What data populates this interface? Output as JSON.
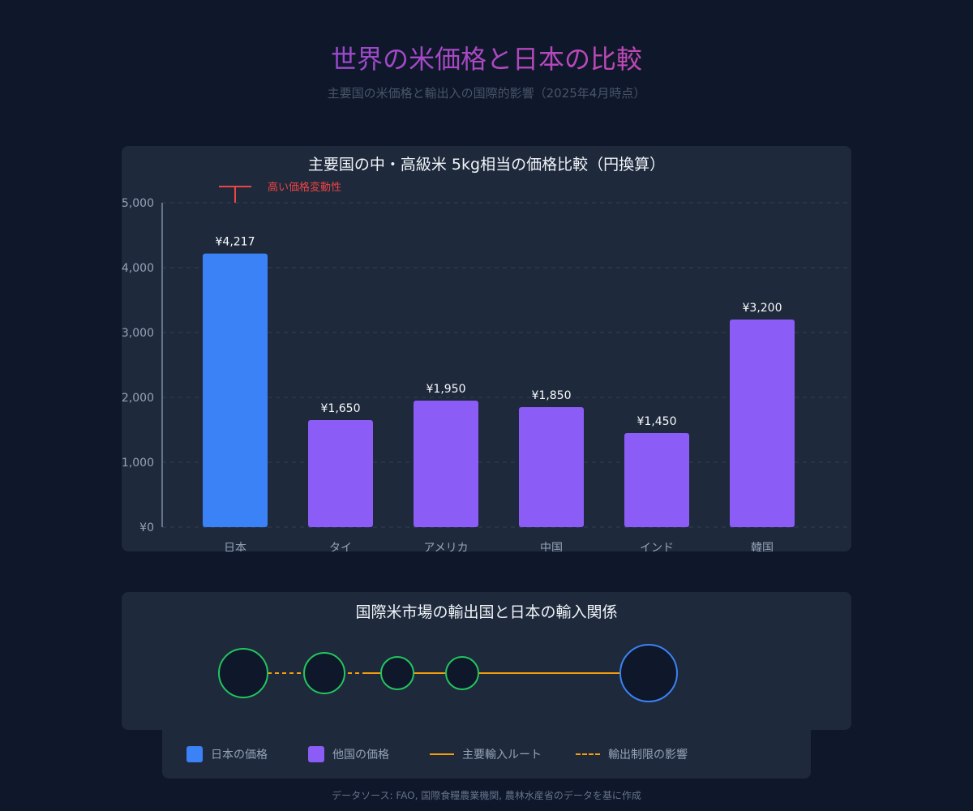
{
  "page": {
    "title": "世界の米価格と日本の比較",
    "subtitle": "主要国の米価格と輸出入の国際的影響（2025年4月時点）",
    "source": "データソース: FAO, 国際食糧農業機関, 農林水産省のデータを基に作成"
  },
  "chart_data": {
    "type": "bar",
    "title": "主要国の中・高級米 5kg相当の価格比較（円換算）",
    "categories": [
      "日本",
      "タイ",
      "アメリカ",
      "中国",
      "インド",
      "韓国"
    ],
    "values": [
      4217,
      1650,
      1950,
      1850,
      1450,
      3200
    ],
    "value_labels": [
      "¥4,217",
      "¥1,650",
      "¥1,950",
      "¥1,850",
      "¥1,450",
      "¥3,200"
    ],
    "colors": [
      "#3b82f6",
      "#8b5cf6",
      "#8b5cf6",
      "#8b5cf6",
      "#8b5cf6",
      "#8b5cf6"
    ],
    "ylim": [
      0,
      5000
    ],
    "yticks": [
      0,
      1000,
      2000,
      3000,
      4000,
      5000
    ],
    "ytick_labels": [
      "¥0",
      "¥1,000",
      "¥2,000",
      "¥3,000",
      "¥4,000",
      "¥5,000"
    ],
    "grid": true,
    "annotation": {
      "text": "高い価格変動性",
      "category": "日本",
      "color": "#ef4444"
    }
  },
  "network": {
    "title": "国際米市場の輸出国と日本の輸入関係",
    "node_colors": {
      "exporter": "#22c55e",
      "japan": "#3b82f6",
      "fill": "#0f172a"
    },
    "route_color": "#f59e0b"
  },
  "legend": {
    "items": [
      {
        "label": "日本の価格",
        "color": "#3b82f6",
        "kind": "swatch"
      },
      {
        "label": "他国の価格",
        "color": "#8b5cf6",
        "kind": "swatch"
      },
      {
        "label": "主要輸入ルート",
        "color": "#f59e0b",
        "kind": "line"
      },
      {
        "label": "輸出制限の影響",
        "color": "#f59e0b",
        "kind": "dash"
      }
    ]
  }
}
